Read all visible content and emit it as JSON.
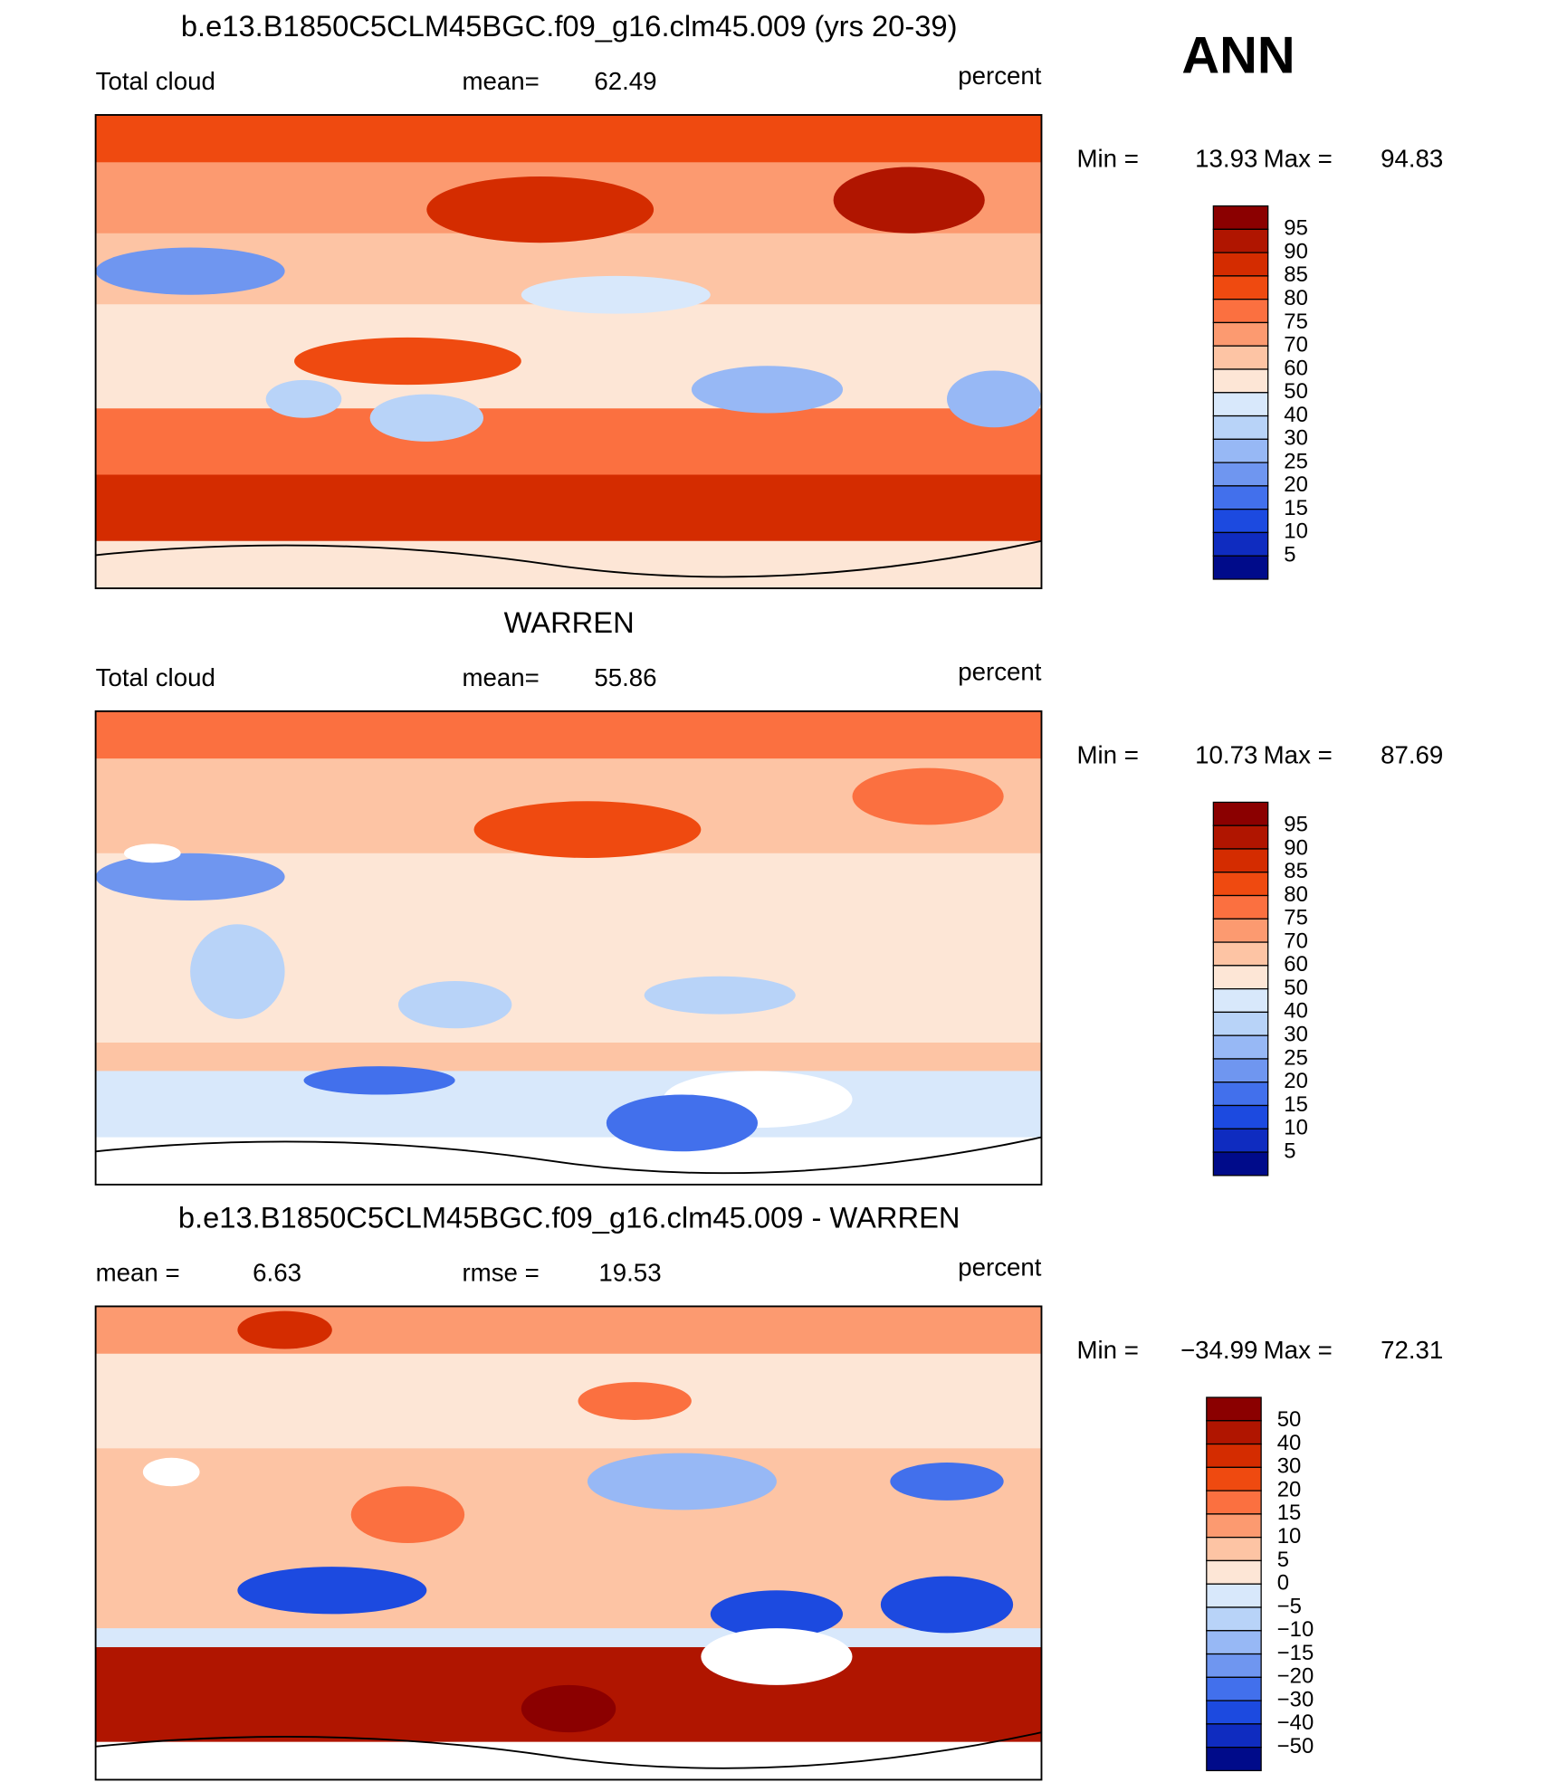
{
  "header": {
    "season": "ANN"
  },
  "panels": [
    {
      "title": "b.e13.B1850C5CLM45BGC.f09_g16.clm45.009 (yrs 20-39)",
      "left_label": "Total cloud",
      "stat_label": "mean=",
      "stat_value": "62.49",
      "units": "percent",
      "min_label": "Min =",
      "min": "13.93",
      "max_label": "Max =",
      "max": "94.83",
      "colorbar": {
        "labels": [
          "95",
          "90",
          "85",
          "80",
          "75",
          "70",
          "60",
          "50",
          "40",
          "30",
          "25",
          "20",
          "15",
          "10",
          "5"
        ],
        "colors": [
          "#8b0000",
          "#b01500",
          "#d42c00",
          "#ef4a10",
          "#fb7040",
          "#fc9a70",
          "#fdc4a4",
          "#fde6d6",
          "#d8e8fb",
          "#b8d3f8",
          "#97b8f5",
          "#6f96f0",
          "#4270ec",
          "#1c4ae0",
          "#0f2cc0",
          "#000b8a"
        ]
      }
    },
    {
      "title": "WARREN",
      "left_label": "Total cloud",
      "stat_label": "mean=",
      "stat_value": "55.86",
      "units": "percent",
      "min_label": "Min =",
      "min": "10.73",
      "max_label": "Max =",
      "max": "87.69",
      "colorbar": {
        "labels": [
          "95",
          "90",
          "85",
          "80",
          "75",
          "70",
          "60",
          "50",
          "40",
          "30",
          "25",
          "20",
          "15",
          "10",
          "5"
        ],
        "colors": [
          "#8b0000",
          "#b01500",
          "#d42c00",
          "#ef4a10",
          "#fb7040",
          "#fc9a70",
          "#fdc4a4",
          "#fde6d6",
          "#d8e8fb",
          "#b8d3f8",
          "#97b8f5",
          "#6f96f0",
          "#4270ec",
          "#1c4ae0",
          "#0f2cc0",
          "#000b8a"
        ]
      }
    },
    {
      "title": "b.e13.B1850C5CLM45BGC.f09_g16.clm45.009 - WARREN",
      "left_label": "mean =",
      "left_value": "6.63",
      "stat_label": "rmse =",
      "stat_value": "19.53",
      "units": "percent",
      "min_label": "Min =",
      "min": "−34.99",
      "max_label": "Max =",
      "max": "72.31",
      "colorbar": {
        "labels": [
          "50",
          "40",
          "30",
          "20",
          "15",
          "10",
          "5",
          "0",
          "−5",
          "−10",
          "−15",
          "−20",
          "−30",
          "−40",
          "−50"
        ],
        "colors": [
          "#8b0000",
          "#b01500",
          "#d42c00",
          "#ef4a10",
          "#fb7040",
          "#fc9a70",
          "#fdc4a4",
          "#fde6d6",
          "#d8e8fb",
          "#b8d3f8",
          "#97b8f5",
          "#6f96f0",
          "#4270ec",
          "#1c4ae0",
          "#0f2cc0",
          "#000b8a"
        ]
      }
    }
  ]
}
